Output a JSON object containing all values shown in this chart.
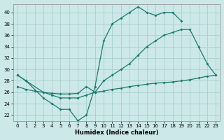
{
  "xlabel": "Humidex (Indice chaleur)",
  "bg_color": "#cce8e8",
  "grid_color": "#aad0d0",
  "line_color": "#1a7a6e",
  "xlim": [
    -0.5,
    23.5
  ],
  "ylim": [
    21.0,
    41.5
  ],
  "xticks": [
    0,
    1,
    2,
    3,
    4,
    5,
    6,
    7,
    8,
    9,
    10,
    11,
    12,
    13,
    14,
    15,
    16,
    17,
    18,
    19,
    20,
    21,
    22,
    23
  ],
  "yticks": [
    22,
    24,
    26,
    28,
    30,
    32,
    34,
    36,
    38,
    40
  ],
  "series": [
    {
      "x": [
        0,
        1,
        3,
        4,
        5,
        6,
        7,
        8,
        9,
        10,
        11,
        12,
        13,
        14,
        15,
        16,
        17,
        18,
        19
      ],
      "y": [
        29,
        28,
        25,
        24,
        23,
        23,
        21,
        22,
        27,
        35,
        38,
        39,
        40,
        41,
        40,
        39.5,
        40,
        40,
        38.5
      ]
    },
    {
      "x": [
        0,
        1,
        3,
        4,
        5,
        6,
        7,
        8,
        9,
        10,
        11,
        12,
        13,
        14,
        15,
        16,
        17,
        18,
        19,
        20,
        21,
        22,
        23
      ],
      "y": [
        29,
        28,
        26,
        25.5,
        25,
        25,
        25,
        25.5,
        26,
        28,
        29,
        30,
        31,
        32.5,
        34,
        35,
        36,
        36.5,
        37,
        37,
        34,
        31,
        29
      ]
    },
    {
      "x": [
        0,
        1,
        2,
        3,
        4,
        5,
        6,
        7,
        8,
        9,
        10,
        11,
        12,
        13,
        14,
        15,
        16,
        17,
        18,
        19,
        20,
        21,
        22,
        23
      ],
      "y": [
        27,
        26.5,
        26.2,
        26.0,
        25.8,
        25.7,
        25.7,
        25.8,
        27,
        26,
        26.2,
        26.5,
        26.7,
        27.0,
        27.2,
        27.4,
        27.6,
        27.7,
        27.8,
        28.0,
        28.2,
        28.5,
        28.8,
        29.0
      ]
    }
  ]
}
